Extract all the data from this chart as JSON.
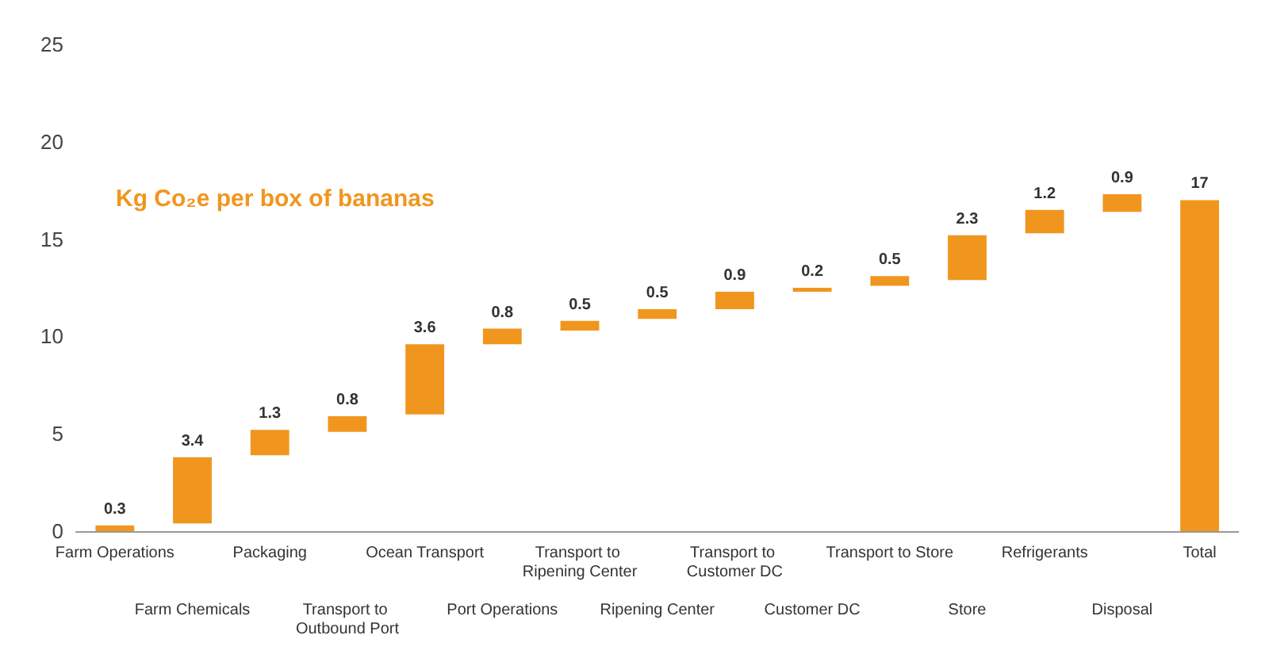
{
  "chart_data": {
    "type": "bar",
    "title": "Kg Co₂e per box of bananas",
    "categories": [
      "Farm Operations",
      "Farm Chemicals",
      "Packaging",
      "Transport to Outbound Port",
      "Ocean Transport",
      "Port Operations",
      "Transport to Ripening Center",
      "Ripening Center",
      "Transport to Customer DC",
      "Customer DC",
      "Transport to Store",
      "Store",
      "Refrigerants",
      "Disposal",
      "Total"
    ],
    "values": [
      0.3,
      3.4,
      1.3,
      0.8,
      3.6,
      0.8,
      0.5,
      0.5,
      0.9,
      0.2,
      0.5,
      2.3,
      1.2,
      0.9,
      17
    ],
    "base": [
      0,
      0.4,
      3.9,
      5.1,
      6.0,
      9.6,
      10.3,
      10.9,
      11.4,
      12.3,
      12.6,
      12.9,
      15.3,
      16.4,
      0
    ],
    "color": "#f0961e",
    "ylim": [
      0,
      25
    ],
    "yticks": [
      0,
      5,
      10,
      15,
      20,
      25
    ],
    "grid": false,
    "data_labels": true
  }
}
